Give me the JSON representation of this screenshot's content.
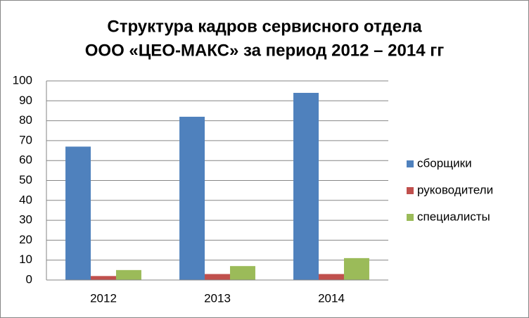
{
  "chart_data": {
    "type": "bar",
    "title": [
      "Структура кадров сервисного отдела",
      "ООО «ЦЕО-МАКС» за период 2012 – 2014 гг"
    ],
    "categories": [
      "2012",
      "2013",
      "2014"
    ],
    "series": [
      {
        "name": "сборщики",
        "color": "#4f81bd",
        "values": [
          67,
          82,
          94
        ]
      },
      {
        "name": "руководители",
        "color": "#c0504d",
        "values": [
          2,
          3,
          3
        ]
      },
      {
        "name": "специалисты",
        "color": "#9bbb59",
        "values": [
          5,
          7,
          11
        ]
      }
    ],
    "ylim": [
      0,
      100
    ],
    "yticks": [
      0,
      10,
      20,
      30,
      40,
      50,
      60,
      70,
      80,
      90,
      100
    ],
    "grid": true,
    "legend": "right"
  }
}
